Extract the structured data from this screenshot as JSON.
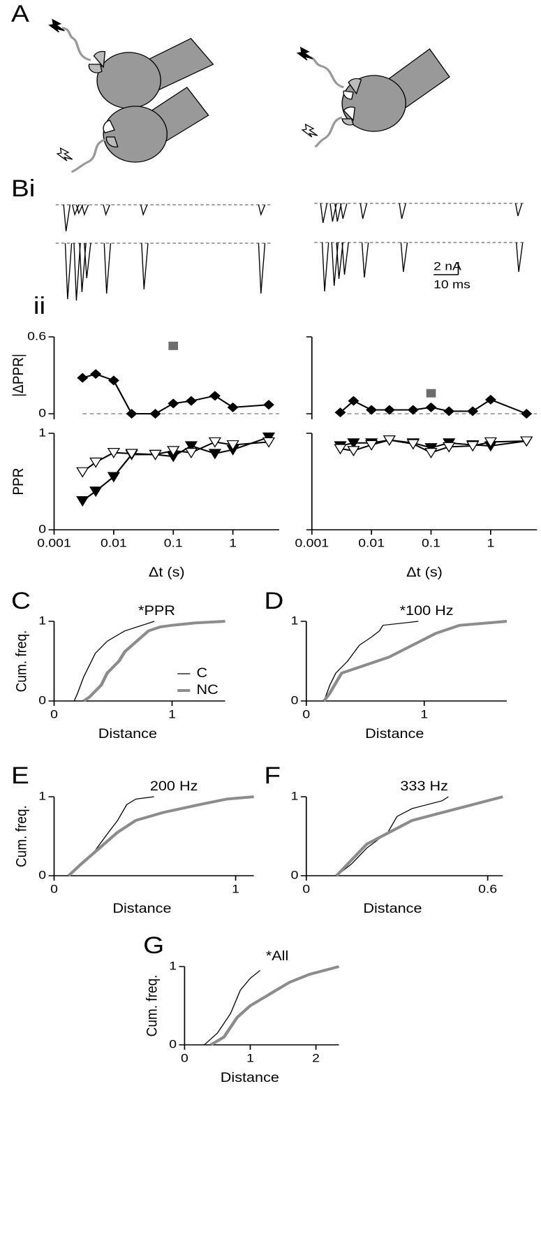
{
  "figure": {
    "panel_labels": [
      "A",
      "Bi",
      "ii",
      "C",
      "D",
      "E",
      "F",
      "G"
    ],
    "scale_bar": {
      "current": "2 nA",
      "time": "10 ms"
    }
  },
  "chart_data": [
    {
      "type": "line",
      "ylabel": "|ΔPPR|",
      "xlog": true,
      "x_axis": false,
      "zero_line": true,
      "xlim": [
        0.001,
        6
      ],
      "ylim": [
        0,
        0.6
      ],
      "yticks": [
        0,
        0.6
      ],
      "x": [
        0.003,
        0.005,
        0.01,
        0.02,
        0.05,
        0.1,
        0.2,
        0.5,
        1,
        4
      ],
      "series": [
        {
          "color": "#000000",
          "marker": "diamond",
          "values": [
            0.28,
            0.31,
            0.26,
            0,
            0,
            0.08,
            0.1,
            0.14,
            0.05,
            0.07
          ]
        },
        {
          "color": "#6d6d6d",
          "marker": "square",
          "line": false,
          "x": [
            0.1
          ],
          "values": [
            0.53
          ]
        }
      ]
    },
    {
      "type": "line",
      "ylabel": "PPR",
      "xlabel": "Δt (s)",
      "xlog": true,
      "xlim": [
        0.001,
        6
      ],
      "xticks": [
        0.001,
        0.01,
        0.1,
        1
      ],
      "ylim": [
        0,
        1
      ],
      "yticks": [
        0,
        1
      ],
      "x": [
        0.003,
        0.005,
        0.01,
        0.02,
        0.05,
        0.1,
        0.2,
        0.5,
        1,
        4
      ],
      "series": [
        {
          "color": "#000000",
          "marker": "triangle-filled",
          "values": [
            0.3,
            0.4,
            0.55,
            0.78,
            0.78,
            0.76,
            0.87,
            0.79,
            0.83,
            0.96
          ]
        },
        {
          "color": "#000000",
          "marker": "triangle-open",
          "values": [
            0.6,
            0.7,
            0.8,
            0.79,
            0.78,
            0.82,
            0.8,
            0.91,
            0.88,
            0.91
          ]
        }
      ]
    },
    {
      "type": "line",
      "xlog": true,
      "x_axis": false,
      "zero_line": true,
      "ytick_labels": false,
      "xlim": [
        0.001,
        6
      ],
      "ylim": [
        0,
        0.6
      ],
      "yticks": [
        0,
        0.6
      ],
      "x": [
        0.003,
        0.005,
        0.01,
        0.02,
        0.05,
        0.1,
        0.2,
        0.5,
        1,
        4
      ],
      "series": [
        {
          "color": "#000000",
          "marker": "diamond",
          "values": [
            0.01,
            0.1,
            0.03,
            0.03,
            0.03,
            0.05,
            0.02,
            0.02,
            0.11,
            0
          ]
        },
        {
          "color": "#6d6d6d",
          "marker": "square",
          "line": false,
          "x": [
            0.1
          ],
          "values": [
            0.16
          ]
        }
      ]
    },
    {
      "type": "line",
      "xlabel": "Δt (s)",
      "xlog": true,
      "ytick_labels": false,
      "xlim": [
        0.001,
        6
      ],
      "xticks": [
        0.001,
        0.01,
        0.1,
        1
      ],
      "ylim": [
        0,
        1
      ],
      "yticks": [
        0,
        1
      ],
      "x": [
        0.003,
        0.005,
        0.01,
        0.02,
        0.05,
        0.1,
        0.2,
        0.5,
        1,
        4
      ],
      "series": [
        {
          "color": "#000000",
          "marker": "triangle-filled",
          "values": [
            0.87,
            0.9,
            0.9,
            0.93,
            0.9,
            0.85,
            0.9,
            0.88,
            0.87,
            0.92
          ]
        },
        {
          "color": "#000000",
          "marker": "triangle-open",
          "values": [
            0.84,
            0.82,
            0.88,
            0.93,
            0.89,
            0.8,
            0.86,
            0.87,
            0.91,
            0.92
          ]
        }
      ]
    },
    {
      "type": "step",
      "title": "*PPR",
      "xlabel": "Distance",
      "ylabel": "Cum. freq.",
      "legend": true,
      "xlim": [
        0,
        1.45
      ],
      "xticks": [
        0,
        1
      ],
      "ylim": [
        0,
        1
      ],
      "yticks": [
        0,
        1
      ],
      "series": [
        {
          "name": "C",
          "color": "#000000",
          "width": 1.2,
          "x": [
            0.17,
            0.2,
            0.25,
            0.3,
            0.35,
            0.45,
            0.6,
            0.85
          ],
          "values": [
            0,
            0.1,
            0.3,
            0.45,
            0.6,
            0.75,
            0.88,
            1
          ]
        },
        {
          "name": "NC",
          "color": "#8c8c8c",
          "width": 4,
          "x": [
            0.25,
            0.3,
            0.4,
            0.45,
            0.55,
            0.6,
            0.7,
            0.8,
            0.9,
            1,
            1.2,
            1.45
          ],
          "values": [
            0,
            0.05,
            0.2,
            0.35,
            0.5,
            0.62,
            0.75,
            0.88,
            0.93,
            0.95,
            0.98,
            1
          ]
        }
      ]
    },
    {
      "type": "step",
      "title": "*100 Hz",
      "xlabel": "Distance",
      "xlim": [
        0,
        1.7
      ],
      "xticks": [
        0,
        1
      ],
      "ylim": [
        0,
        1
      ],
      "yticks": [
        0,
        1
      ],
      "series": [
        {
          "color": "#000000",
          "width": 1.2,
          "x": [
            0.15,
            0.2,
            0.25,
            0.35,
            0.45,
            0.55,
            0.62,
            0.65,
            0.95
          ],
          "values": [
            0,
            0.2,
            0.35,
            0.5,
            0.7,
            0.8,
            0.88,
            0.95,
            1
          ]
        },
        {
          "color": "#8c8c8c",
          "width": 4,
          "x": [
            0.15,
            0.2,
            0.3,
            0.5,
            0.7,
            0.9,
            1.1,
            1.3,
            1.7
          ],
          "values": [
            0,
            0.1,
            0.35,
            0.45,
            0.55,
            0.7,
            0.85,
            0.95,
            1
          ]
        }
      ]
    },
    {
      "type": "step",
      "title": "200 Hz",
      "xlabel": "Distance",
      "ylabel": "Cum. freq.",
      "xlim": [
        0,
        1.1
      ],
      "xticks": [
        0,
        1
      ],
      "ylim": [
        0,
        1
      ],
      "yticks": [
        0,
        1
      ],
      "series": [
        {
          "color": "#000000",
          "width": 1.2,
          "x": [
            0.08,
            0.15,
            0.22,
            0.3,
            0.35,
            0.4,
            0.45,
            0.55
          ],
          "values": [
            0,
            0.15,
            0.3,
            0.55,
            0.7,
            0.9,
            0.97,
            1
          ]
        },
        {
          "color": "#8c8c8c",
          "width": 4,
          "x": [
            0.08,
            0.15,
            0.25,
            0.35,
            0.45,
            0.6,
            0.8,
            0.95,
            1.1
          ],
          "values": [
            0,
            0.15,
            0.35,
            0.55,
            0.7,
            0.8,
            0.9,
            0.97,
            1
          ]
        }
      ]
    },
    {
      "type": "step",
      "title": "333 Hz",
      "xlabel": "Distance",
      "xlim": [
        0,
        0.65
      ],
      "xticks": [
        0,
        0.6
      ],
      "ylim": [
        0,
        1
      ],
      "yticks": [
        0,
        1
      ],
      "series": [
        {
          "color": "#000000",
          "width": 1.2,
          "x": [
            0.1,
            0.15,
            0.2,
            0.27,
            0.3,
            0.35,
            0.45,
            0.47
          ],
          "values": [
            0,
            0.15,
            0.35,
            0.55,
            0.75,
            0.85,
            0.95,
            1
          ]
        },
        {
          "color": "#8c8c8c",
          "width": 4,
          "x": [
            0.1,
            0.15,
            0.2,
            0.25,
            0.35,
            0.45,
            0.55,
            0.65
          ],
          "values": [
            0,
            0.2,
            0.4,
            0.5,
            0.7,
            0.8,
            0.9,
            1
          ]
        }
      ]
    },
    {
      "type": "step",
      "title": "*All",
      "xlabel": "Distance",
      "ylabel": "Cum. freq.",
      "xlim": [
        0,
        2.35
      ],
      "xticks": [
        0,
        1,
        2
      ],
      "ylim": [
        0,
        1
      ],
      "yticks": [
        0,
        1
      ],
      "series": [
        {
          "color": "#000000",
          "width": 1.2,
          "x": [
            0.3,
            0.5,
            0.7,
            0.85,
            1,
            1.15
          ],
          "values": [
            0,
            0.15,
            0.4,
            0.7,
            0.85,
            0.95
          ]
        },
        {
          "color": "#8c8c8c",
          "width": 4,
          "x": [
            0.4,
            0.6,
            0.8,
            1,
            1.3,
            1.6,
            1.9,
            2.35
          ],
          "values": [
            0,
            0.1,
            0.35,
            0.5,
            0.65,
            0.8,
            0.9,
            1
          ]
        }
      ]
    }
  ]
}
